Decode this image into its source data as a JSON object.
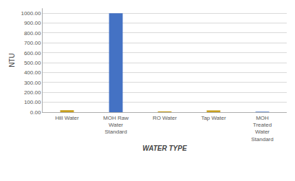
{
  "chart_data": {
    "type": "bar",
    "categories": [
      "Hill Water",
      "MOH Raw\nWater\nStandard",
      "RO Water",
      "Tap Water",
      "MOH\nTreated\nWater\nStandard"
    ],
    "values": [
      20,
      1000,
      8,
      18,
      5
    ],
    "colors": [
      "#C8A020",
      "#4472C4",
      "#C8A020",
      "#C8A020",
      "#4472C4"
    ],
    "xlabel": "WATER TYPE",
    "ylabel": "NTU",
    "ylim": [
      0,
      1050
    ],
    "yticks": [
      {
        "value": 0,
        "label": "0.00"
      },
      {
        "value": 100,
        "label": "100.00"
      },
      {
        "value": 200,
        "label": "200.00"
      },
      {
        "value": 300,
        "label": "300.00"
      },
      {
        "value": 400,
        "label": "400.00"
      },
      {
        "value": 500,
        "label": "500.00"
      },
      {
        "value": 600,
        "label": "600.00"
      },
      {
        "value": 700,
        "label": "700.00"
      },
      {
        "value": 800,
        "label": "800.00"
      },
      {
        "value": 900,
        "label": "900.00"
      },
      {
        "value": 1000,
        "label": "1000.00"
      }
    ],
    "grid": true
  }
}
